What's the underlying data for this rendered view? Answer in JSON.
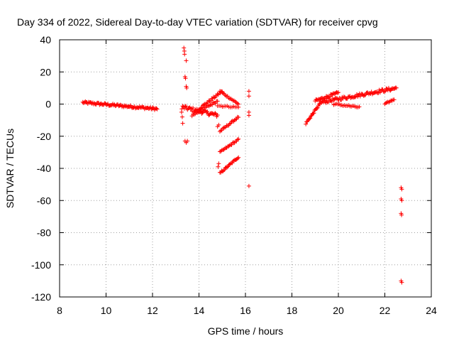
{
  "chart_data": {
    "type": "scatter",
    "title": "Day 334 of 2022, Sidereal Day-to-day VTEC variation (SDTVAR) for receiver cpvg",
    "xlabel": "GPS time / hours",
    "ylabel": "SDTVAR / TECUs",
    "xlim": [
      8,
      24
    ],
    "ylim": [
      -120,
      40
    ],
    "xticks": [
      8,
      10,
      12,
      14,
      16,
      18,
      20,
      22,
      24
    ],
    "yticks": [
      40,
      20,
      0,
      -20,
      -40,
      -60,
      -80,
      -100,
      -120
    ],
    "xtick_labels": [
      "8",
      "10",
      "12",
      "14",
      "16",
      "18",
      "20",
      "22",
      "24"
    ],
    "ytick_labels": [
      "40",
      "20",
      "0",
      "-20",
      "-40",
      "-60",
      "-80",
      "-100",
      "-120"
    ],
    "grid": true,
    "marker": "+",
    "color": "#ff0000",
    "segments": [
      {
        "x": [
          9.0,
          12.2
        ],
        "y": [
          1,
          -3
        ],
        "jitter": 1.5,
        "n": 90
      },
      {
        "x": [
          13.3,
          14.8
        ],
        "y": [
          -2,
          -7
        ],
        "jitter": 2.5,
        "n": 45
      },
      {
        "x": [
          13.7,
          14.8
        ],
        "y": [
          -7,
          2
        ],
        "jitter": 1.5,
        "n": 25
      },
      {
        "x": [
          14.0,
          15.0
        ],
        "y": [
          -3,
          8
        ],
        "jitter": 1.2,
        "n": 25
      },
      {
        "x": [
          14.9,
          15.7
        ],
        "y": [
          8,
          0
        ],
        "jitter": 1.0,
        "n": 18
      },
      {
        "x": [
          14.9,
          15.7
        ],
        "y": [
          -17,
          -8
        ],
        "jitter": 1.0,
        "n": 20
      },
      {
        "x": [
          14.9,
          15.7
        ],
        "y": [
          -30,
          -22
        ],
        "jitter": 1.0,
        "n": 20
      },
      {
        "x": [
          14.9,
          15.7
        ],
        "y": [
          -43,
          -33
        ],
        "jitter": 1.0,
        "n": 22
      },
      {
        "x": [
          14.8,
          15.7
        ],
        "y": [
          -1,
          -2
        ],
        "jitter": 0.8,
        "n": 14
      },
      {
        "x": [
          18.6,
          19.2
        ],
        "y": [
          -12,
          0
        ],
        "jitter": 1.2,
        "n": 20
      },
      {
        "x": [
          19.0,
          20.0
        ],
        "y": [
          2,
          7
        ],
        "jitter": 1.5,
        "n": 28
      },
      {
        "x": [
          19.2,
          22.5
        ],
        "y": [
          1,
          10
        ],
        "jitter": 2.0,
        "n": 90
      },
      {
        "x": [
          19.8,
          20.9
        ],
        "y": [
          0,
          -2
        ],
        "jitter": 1.0,
        "n": 20
      },
      {
        "x": [
          22.0,
          22.4
        ],
        "y": [
          0,
          3
        ],
        "jitter": 0.8,
        "n": 10
      }
    ],
    "points": [
      {
        "x": 13.35,
        "y": 35
      },
      {
        "x": 13.37,
        "y": 33
      },
      {
        "x": 13.38,
        "y": 31
      },
      {
        "x": 13.45,
        "y": 27
      },
      {
        "x": 13.4,
        "y": 17
      },
      {
        "x": 13.42,
        "y": 16
      },
      {
        "x": 13.45,
        "y": 11
      },
      {
        "x": 13.47,
        "y": 10
      },
      {
        "x": 13.4,
        "y": -23
      },
      {
        "x": 13.45,
        "y": -24
      },
      {
        "x": 13.5,
        "y": -23
      },
      {
        "x": 13.25,
        "y": -5
      },
      {
        "x": 13.28,
        "y": -8
      },
      {
        "x": 13.3,
        "y": -12
      },
      {
        "x": 13.26,
        "y": -3
      },
      {
        "x": 14.85,
        "y": -13
      },
      {
        "x": 14.8,
        "y": -14
      },
      {
        "x": 14.85,
        "y": -37
      },
      {
        "x": 14.82,
        "y": -39
      },
      {
        "x": 16.15,
        "y": 8
      },
      {
        "x": 16.15,
        "y": 5
      },
      {
        "x": 16.15,
        "y": -5
      },
      {
        "x": 16.15,
        "y": -7
      },
      {
        "x": 16.15,
        "y": -51
      },
      {
        "x": 22.7,
        "y": -52
      },
      {
        "x": 22.73,
        "y": -53
      },
      {
        "x": 22.7,
        "y": -59
      },
      {
        "x": 22.73,
        "y": -60
      },
      {
        "x": 22.7,
        "y": -68
      },
      {
        "x": 22.72,
        "y": -69
      },
      {
        "x": 22.7,
        "y": -110
      },
      {
        "x": 22.73,
        "y": -111
      }
    ]
  }
}
